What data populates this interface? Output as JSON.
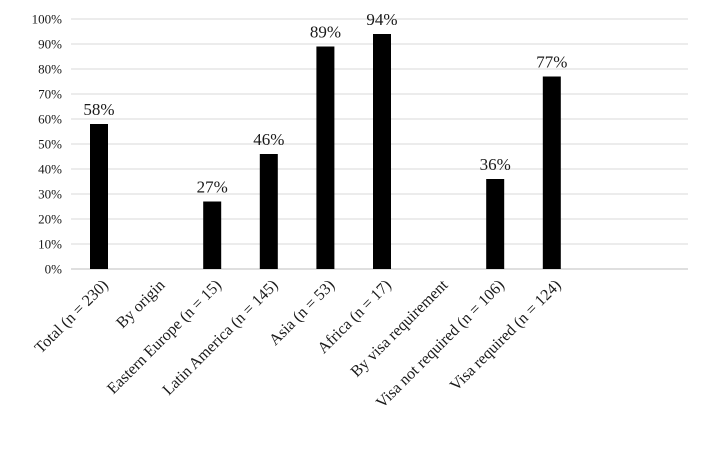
{
  "chart_data": {
    "type": "bar",
    "categories": [
      "Total (n = 230)",
      "By origin",
      "Eastern Europe (n =  15)",
      "Latin America  (n = 145)",
      "Asia (n = 53)",
      "Africa (n = 17)",
      "By visa requirement",
      "Visa not required  (n = 106)",
      "Visa required (n = 124)"
    ],
    "values": [
      58,
      null,
      27,
      46,
      89,
      94,
      null,
      36,
      77
    ],
    "data_labels": [
      "58%",
      "",
      "27%",
      "46%",
      "89%",
      "94%",
      "",
      "36%",
      "77%"
    ],
    "ylim": [
      0,
      100
    ],
    "yticks": [
      "0%",
      "10%",
      "20%",
      "30%",
      "40%",
      "50%",
      "60%",
      "70%",
      "80%",
      "90%",
      "100%"
    ],
    "grid": true,
    "bar_color": "#000000",
    "grid_color": "#d9d9d9"
  }
}
